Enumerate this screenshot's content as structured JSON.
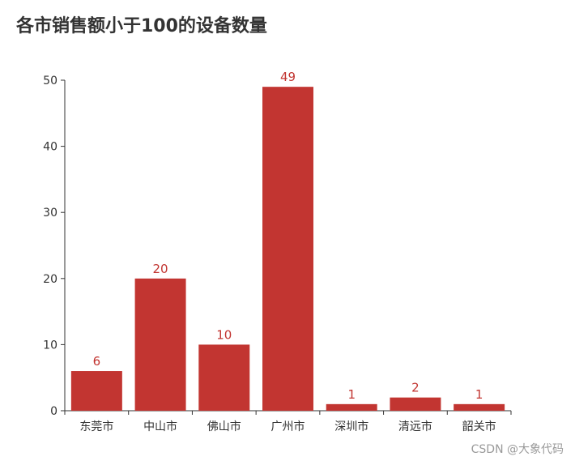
{
  "chart_data": {
    "type": "bar",
    "title": "各市销售额小于100的设备数量",
    "categories": [
      "东莞市",
      "中山市",
      "佛山市",
      "广州市",
      "深圳市",
      "清远市",
      "韶关市"
    ],
    "values": [
      6,
      20,
      10,
      49,
      1,
      2,
      1
    ],
    "ylim": [
      0,
      50
    ],
    "yticks": [
      0,
      10,
      20,
      30,
      40,
      50
    ],
    "grid": false,
    "legend": "none",
    "colors": {
      "bar": "#c23531",
      "data_label": "#c23531",
      "axis": "#333333",
      "tick_label": "#333333"
    }
  },
  "watermark": "CSDN @大象代码"
}
